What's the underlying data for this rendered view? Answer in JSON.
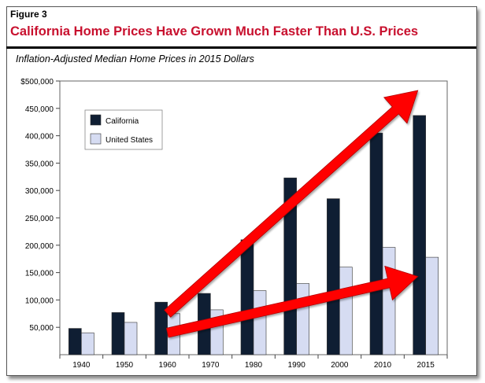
{
  "figure_label": "Figure 3",
  "title": "California Home Prices Have Grown Much Faster Than U.S. Prices",
  "subtitle": "Inflation-Adjusted Median Home Prices in 2015 Dollars",
  "colors": {
    "california": "#0f1e33",
    "united_states": "#d6dcf2",
    "title": "#c8102e",
    "arrow": "#ff0000"
  },
  "chart_data": {
    "type": "bar",
    "categories": [
      "1940",
      "1950",
      "1960",
      "1970",
      "1980",
      "1990",
      "2000",
      "2010",
      "2015"
    ],
    "series": [
      {
        "name": "California",
        "values": [
          48000,
          77000,
          96000,
          112000,
          210000,
          323000,
          285000,
          405000,
          437000
        ]
      },
      {
        "name": "United States",
        "values": [
          40000,
          59000,
          75000,
          82000,
          117000,
          130000,
          160000,
          196000,
          178000
        ]
      }
    ],
    "ylim": [
      0,
      500000
    ],
    "yticks": [
      50000,
      100000,
      150000,
      200000,
      250000,
      300000,
      350000,
      400000,
      450000,
      500000
    ],
    "ytick_labels": [
      "50,000",
      "100,000",
      "150,000",
      "200,000",
      "250,000",
      "300,000",
      "350,000",
      "400,000",
      "450,000",
      "$500,000"
    ],
    "legend_position": "top-left",
    "grid": false,
    "annotations": [
      {
        "type": "arrow",
        "from": [
          "1960",
          75000
        ],
        "to": [
          "2015",
          500000
        ]
      },
      {
        "type": "arrow",
        "from": [
          "1960",
          40000
        ],
        "to": [
          "2015",
          160000
        ]
      }
    ]
  }
}
